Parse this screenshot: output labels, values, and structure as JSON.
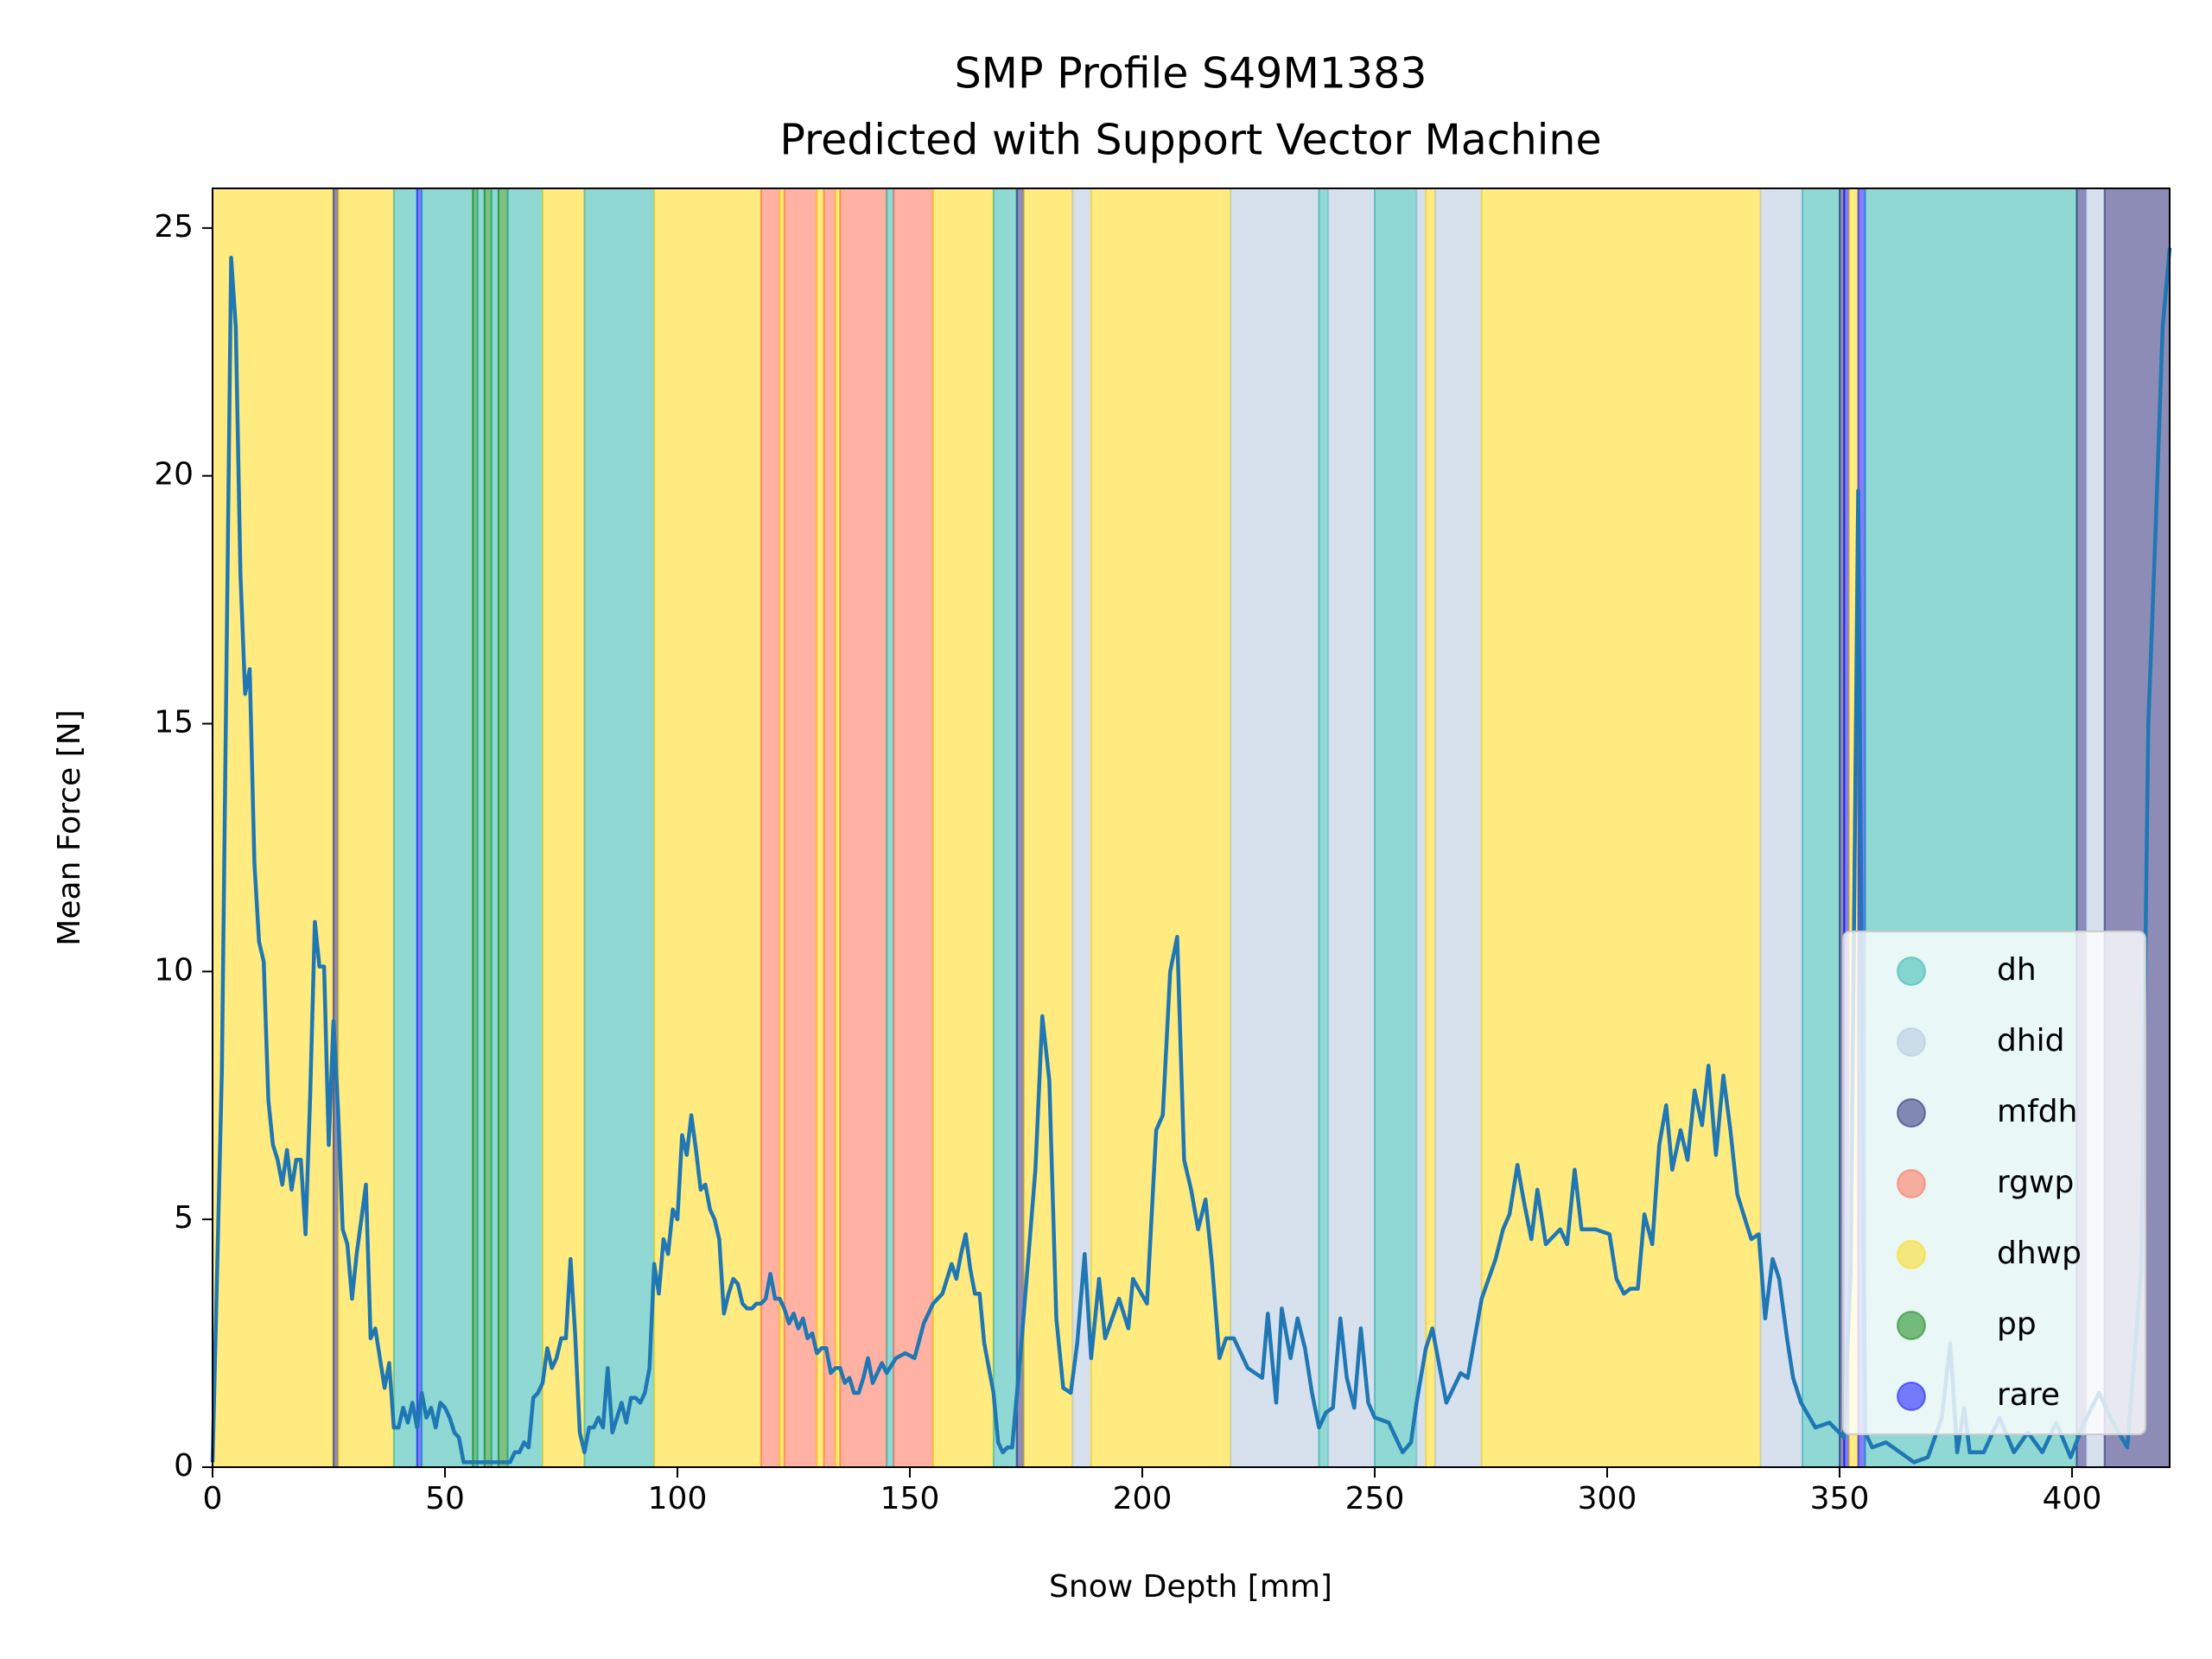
{
  "chart_data": {
    "type": "line",
    "title": "SMP Profile S49M1383",
    "subtitle": "Predicted with Support Vector Machine",
    "xlabel": "Snow Depth [mm]",
    "ylabel": "Mean Force [N]",
    "xlim": [
      0,
      421
    ],
    "ylim": [
      0,
      25.8
    ],
    "xticks": [
      0,
      50,
      100,
      150,
      200,
      250,
      300,
      350,
      400
    ],
    "yticks": [
      0,
      5,
      10,
      15,
      20,
      25
    ],
    "legend_position": "lower right",
    "classes": [
      {
        "name": "dh",
        "color": "#20b2aa"
      },
      {
        "name": "dhid",
        "color": "#b0c4de"
      },
      {
        "name": "mfdh",
        "color": "#191970"
      },
      {
        "name": "rgwp",
        "color": "#ff6347"
      },
      {
        "name": "dhwp",
        "color": "#ffd700"
      },
      {
        "name": "pp",
        "color": "#008000"
      },
      {
        "name": "rare",
        "color": "#0000ff"
      }
    ],
    "spans": [
      [
        0,
        26,
        "dhwp"
      ],
      [
        26,
        27,
        "mfdh"
      ],
      [
        27,
        39,
        "dhwp"
      ],
      [
        39,
        44,
        "dh"
      ],
      [
        44,
        45,
        "rare"
      ],
      [
        45,
        56,
        "dh"
      ],
      [
        56,
        57,
        "pp"
      ],
      [
        57,
        58.5,
        "dh"
      ],
      [
        58.5,
        60,
        "pp"
      ],
      [
        60,
        61.5,
        "dh"
      ],
      [
        61.5,
        63.5,
        "pp"
      ],
      [
        63.5,
        71,
        "dh"
      ],
      [
        71,
        80,
        "dhwp"
      ],
      [
        80,
        95,
        "dh"
      ],
      [
        95,
        118,
        "dhwp"
      ],
      [
        118,
        122,
        "rgwp"
      ],
      [
        122,
        123,
        "dhwp"
      ],
      [
        123,
        130,
        "rgwp"
      ],
      [
        130,
        131.5,
        "dhwp"
      ],
      [
        131.5,
        134,
        "rgwp"
      ],
      [
        134,
        135,
        "dhwp"
      ],
      [
        135,
        145,
        "rgwp"
      ],
      [
        145,
        146.5,
        "dh"
      ],
      [
        146.5,
        155,
        "rgwp"
      ],
      [
        155,
        168,
        "dhwp"
      ],
      [
        168,
        173,
        "dh"
      ],
      [
        173,
        174.5,
        "mfdh"
      ],
      [
        174.5,
        185,
        "dhwp"
      ],
      [
        185,
        189,
        "dhid"
      ],
      [
        189,
        219,
        "dhwp"
      ],
      [
        219,
        238,
        "dhid"
      ],
      [
        238,
        240,
        "dh"
      ],
      [
        240,
        250,
        "dhid"
      ],
      [
        250,
        259,
        "dh"
      ],
      [
        259,
        261,
        "dhid"
      ],
      [
        261,
        263,
        "dhwp"
      ],
      [
        263,
        273,
        "dhid"
      ],
      [
        273,
        333,
        "dhwp"
      ],
      [
        333,
        342,
        "dhid"
      ],
      [
        342,
        350,
        "dh"
      ],
      [
        350,
        351,
        "mfdh"
      ],
      [
        351,
        352,
        "rare"
      ],
      [
        352,
        354,
        "dhwp"
      ],
      [
        354,
        355.5,
        "rare"
      ],
      [
        355.5,
        401,
        "dh"
      ],
      [
        401,
        403,
        "mfdh"
      ],
      [
        403,
        407,
        "dhid"
      ],
      [
        407,
        421,
        "mfdh"
      ]
    ],
    "line": {
      "color": "#1f77b4",
      "x": [
        0,
        2,
        4,
        5,
        6,
        7,
        8,
        9,
        10,
        11,
        12,
        13,
        14,
        15,
        16,
        17,
        18,
        19,
        20,
        21,
        22,
        23,
        24,
        25,
        26,
        27,
        28,
        29,
        30,
        31,
        32,
        33,
        34,
        35,
        36,
        37,
        38,
        39,
        40,
        41,
        42,
        43,
        44,
        45,
        46,
        47,
        48,
        49,
        50,
        51,
        52,
        53,
        54,
        60,
        64,
        65,
        66,
        67,
        68,
        69,
        70,
        71,
        72,
        73,
        74,
        75,
        76,
        77,
        78,
        79,
        80,
        81,
        82,
        83,
        84,
        85,
        86,
        87,
        88,
        89,
        90,
        91,
        92,
        93,
        94,
        95,
        96,
        97,
        98,
        99,
        100,
        101,
        102,
        103,
        104,
        105,
        106,
        107,
        108,
        109,
        110,
        111,
        112,
        113,
        114,
        115,
        116,
        117,
        118,
        119,
        120,
        121,
        122,
        123,
        124,
        125,
        126,
        127,
        128,
        129,
        130,
        131,
        132,
        133,
        134,
        135,
        136,
        137,
        138,
        139,
        140,
        141,
        142,
        143,
        144,
        145,
        147,
        149,
        151,
        153,
        155,
        157,
        159,
        160,
        161,
        162,
        163,
        164,
        165,
        166,
        168,
        169,
        170,
        171,
        172,
        174,
        177,
        178.5,
        180,
        181.5,
        183,
        184.6,
        186,
        187.6,
        189,
        190.7,
        192,
        195,
        197,
        198,
        201,
        203,
        204.4,
        206,
        207.5,
        209,
        210.5,
        212,
        213.6,
        215,
        216.6,
        218,
        219.7,
        222.7,
        225.8,
        227,
        228.8,
        230,
        231.9,
        233.4,
        235,
        236.5,
        238,
        239.5,
        241,
        242.6,
        244,
        245.6,
        247,
        248.6,
        250,
        253,
        256,
        257.8,
        259,
        261,
        262.4,
        264,
        265.4,
        268.5,
        270,
        273,
        276,
        277.6,
        279,
        280.7,
        282,
        283.7,
        285,
        286.8,
        289.9,
        291.4,
        293,
        294.5,
        297.5,
        300.5,
        302,
        303.6,
        305,
        306.6,
        308,
        309.7,
        311.2,
        312.7,
        314,
        315.8,
        317.3,
        318.8,
        320.4,
        321.8,
        323.4,
        325,
        326.5,
        328,
        331,
        332.6,
        334,
        335.6,
        337,
        338.7,
        340,
        341.7,
        344.8,
        347.8,
        350.9,
        352.4,
        354,
        355.5,
        357,
        360,
        363,
        366,
        369,
        372,
        373.8,
        375.3,
        376.8,
        378,
        381,
        384.4,
        387.5,
        390.5,
        393.6,
        396.6,
        399.7,
        402.6,
        405.8,
        408.8,
        411.9,
        414.9,
        416.4,
        418,
        419.5,
        421
      ],
      "y": [
        0.1,
        8,
        24.4,
        23,
        18,
        15.6,
        16.1,
        12.2,
        10.6,
        10.2,
        7.4,
        6.5,
        6.2,
        5.7,
        6.4,
        5.6,
        6.2,
        6.2,
        4.7,
        7.5,
        11,
        10.1,
        10.1,
        6.5,
        9,
        7.2,
        4.8,
        4.5,
        3.4,
        4.3,
        5,
        5.7,
        2.6,
        2.8,
        2.2,
        1.6,
        2.1,
        0.8,
        0.8,
        1.2,
        0.9,
        1.3,
        0.8,
        1.5,
        1,
        1.2,
        0.8,
        1.3,
        1.2,
        1,
        0.7,
        0.6,
        0.1,
        0.1,
        0.1,
        0.3,
        0.3,
        0.5,
        0.4,
        1.4,
        1.5,
        1.7,
        2.4,
        2,
        2.2,
        2.6,
        2.6,
        4.2,
        2.7,
        0.7,
        0.3,
        0.8,
        0.8,
        1,
        0.8,
        2,
        0.7,
        1,
        1.3,
        0.9,
        1.4,
        1.4,
        1.3,
        1.5,
        2,
        4.1,
        3.5,
        4.6,
        4.3,
        5.2,
        5,
        6.7,
        6.3,
        7.1,
        6.4,
        5.6,
        5.7,
        5.2,
        5,
        4.6,
        3.1,
        3.5,
        3.8,
        3.7,
        3.3,
        3.2,
        3.2,
        3.3,
        3.3,
        3.4,
        3.9,
        3.4,
        3.4,
        3.2,
        2.9,
        3.1,
        2.8,
        3,
        2.6,
        2.7,
        2.3,
        2.4,
        2.4,
        1.9,
        2,
        2,
        1.7,
        1.8,
        1.5,
        1.5,
        1.8,
        2.2,
        1.7,
        1.9,
        2.1,
        1.9,
        2.2,
        2.3,
        2.2,
        2.9,
        3.3,
        3.5,
        4.1,
        3.8,
        4.3,
        4.7,
        4,
        3.5,
        3.5,
        2.5,
        1.5,
        0.5,
        0.3,
        0.4,
        0.4,
        2.5,
        6,
        9.1,
        7.8,
        3,
        1.6,
        1.5,
        2.5,
        4.3,
        2.2,
        3.8,
        2.6,
        3.4,
        2.8,
        3.8,
        3.3,
        6.8,
        7.1,
        10,
        10.7,
        6.2,
        5.6,
        4.8,
        5.4,
        4.1,
        2.2,
        2.6,
        2.6,
        2,
        1.8,
        3.1,
        1.3,
        3.2,
        2.2,
        3,
        2.4,
        1.5,
        0.8,
        1.1,
        1.2,
        3,
        1.8,
        1.2,
        2.8,
        1.3,
        1,
        0.9,
        0.3,
        0.5,
        1.3,
        2.4,
        2.8,
        2,
        1.3,
        1.9,
        1.8,
        3.4,
        4.2,
        4.8,
        5.1,
        6.1,
        5.4,
        4.6,
        5.6,
        4.5,
        4.8,
        4.5,
        6,
        4.8,
        4.8,
        4.7,
        3.8,
        3.5,
        3.6,
        3.6,
        5.1,
        4.5,
        6.5,
        7.3,
        6,
        6.8,
        6.2,
        7.6,
        6.9,
        8.1,
        6.3,
        7.9,
        6.8,
        5.5,
        4.6,
        4.7,
        3,
        4.2,
        3.8,
        2.6,
        1.8,
        1.3,
        0.8,
        0.9,
        0.6,
        4,
        19.7,
        0.7,
        0.4,
        0.5,
        0.3,
        0.1,
        0.2,
        1,
        2.5,
        0.3,
        1.2,
        0.3,
        0.3,
        1,
        0.3,
        0.7,
        0.3,
        0.9,
        0.2,
        0.9,
        1.5,
        0.9,
        0.4,
        4,
        15,
        19,
        23,
        24.6
      ]
    }
  }
}
